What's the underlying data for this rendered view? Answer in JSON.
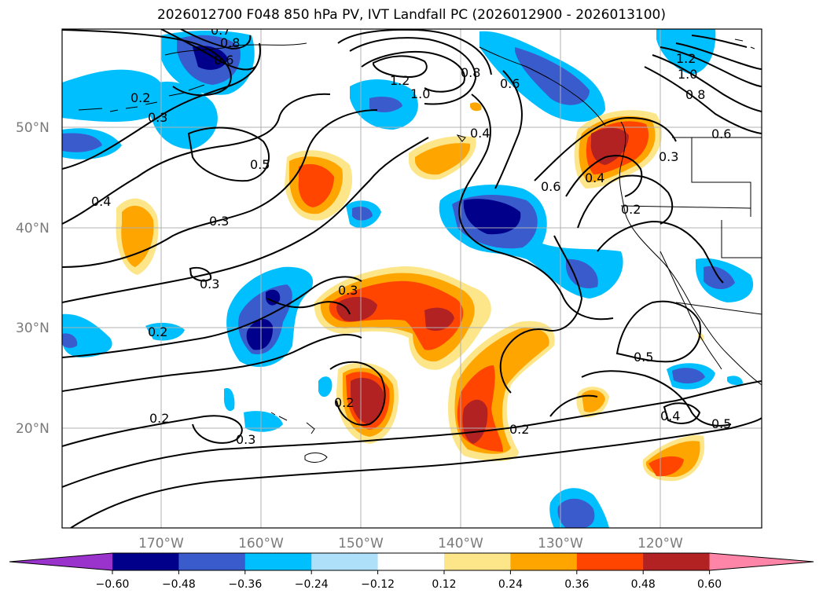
{
  "title": "2026012700 F048 850 hPa PV, IVT Landfall PC (2026012900 - 2026013100)",
  "lat_labels": [
    "50°N",
    "40°N",
    "30°N",
    "20°N"
  ],
  "lon_labels": [
    "170°W",
    "160°W",
    "150°W",
    "140°W",
    "130°W",
    "120°W"
  ],
  "colorbar": {
    "ticks": [
      "−0.60",
      "−0.48",
      "−0.36",
      "−0.24",
      "−0.12",
      "0.12",
      "0.24",
      "0.36",
      "0.48",
      "0.60"
    ],
    "colors": [
      "#9933cc",
      "#00008b",
      "#3a5bcc",
      "#00bfff",
      "#aee0fa",
      "#ffffff",
      "#fde68a",
      "#ffa500",
      "#ff4500",
      "#b22222",
      "#ff85a8"
    ]
  },
  "contour_labels": [
    "0.7",
    "0.8",
    "0.6",
    "0.2",
    "0.3",
    "0.5",
    "0.4",
    "0.3",
    "0.3",
    "0.2",
    "0.2",
    "0.3",
    "1.2",
    "1.0",
    "0.8",
    "0.6",
    "0.4",
    "0.3",
    "0.2",
    "0.6",
    "0.4",
    "0.3",
    "0.2",
    "0.2",
    "0.5",
    "0.4",
    "0.5",
    "1.2",
    "1.0",
    "0.8",
    "0.6"
  ],
  "chart_data": {
    "type": "map-contour",
    "title": "2026012700 F048 850 hPa PV, IVT Landfall PC (2026012900 - 2026013100)",
    "lat_range": [
      10,
      60
    ],
    "lon_range": [
      -180,
      -110
    ],
    "contour_levels_shown": [
      0.2,
      0.3,
      0.4,
      0.5,
      0.6,
      0.8,
      1.0,
      1.2
    ],
    "fill_levels": [
      -0.6,
      -0.48,
      -0.36,
      -0.24,
      -0.12,
      0.12,
      0.24,
      0.36,
      0.48,
      0.6
    ],
    "colorbar_extend": "both"
  }
}
